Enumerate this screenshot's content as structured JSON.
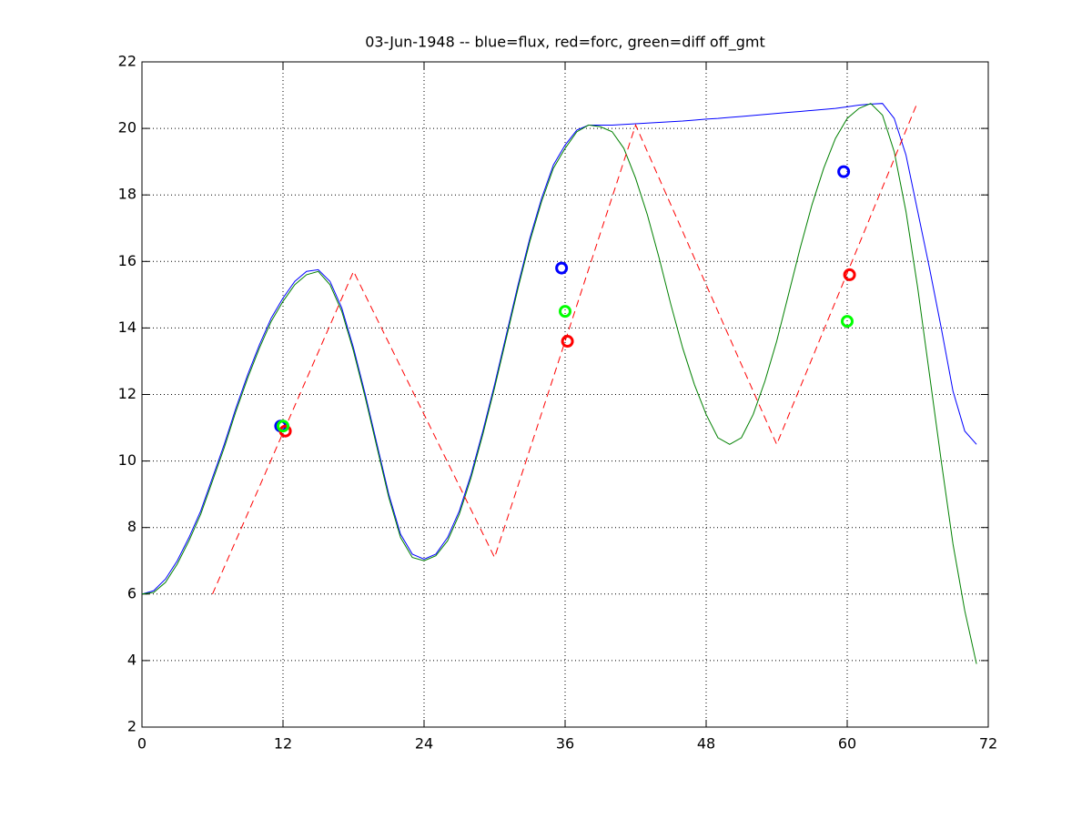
{
  "chart_data": {
    "type": "line",
    "title": "03-Jun-1948 -- blue=flux, red=forc, green=diff off_gmt",
    "xlim": [
      0,
      72
    ],
    "xticks": [
      0,
      12,
      24,
      36,
      48,
      60,
      72
    ],
    "ylim": [
      2,
      22
    ],
    "yticks": [
      2,
      4,
      6,
      8,
      10,
      12,
      14,
      16,
      18,
      20,
      22
    ],
    "grid": true,
    "series": [
      {
        "color": "#0000ff",
        "style": "solid",
        "x": [
          0,
          1,
          2,
          3,
          4,
          5,
          6,
          7,
          8,
          9,
          10,
          11,
          12,
          13,
          14,
          15,
          16,
          17,
          18,
          19,
          20,
          21,
          22,
          23,
          24,
          25,
          26,
          27,
          28,
          29,
          30,
          31,
          32,
          33,
          34,
          35,
          36,
          37,
          38,
          39,
          40,
          41,
          42,
          43,
          44,
          45,
          46,
          47,
          48,
          49,
          50,
          51,
          52,
          53,
          54,
          55,
          56,
          57,
          58,
          59,
          60,
          61,
          62,
          63,
          64,
          65,
          66,
          67,
          68,
          69,
          70,
          71
        ],
        "values": [
          6.0,
          6.1,
          6.45,
          7.0,
          7.7,
          8.5,
          9.5,
          10.5,
          11.6,
          12.6,
          13.5,
          14.3,
          14.9,
          15.4,
          15.7,
          15.75,
          15.4,
          14.6,
          13.4,
          12.0,
          10.5,
          9.0,
          7.8,
          7.2,
          7.05,
          7.2,
          7.7,
          8.5,
          9.6,
          10.9,
          12.3,
          13.8,
          15.3,
          16.7,
          17.9,
          18.9,
          19.5,
          19.95,
          20.1,
          20.1,
          20.1,
          20.12,
          20.14,
          20.16,
          20.18,
          20.2,
          20.22,
          20.25,
          20.28,
          20.3,
          20.33,
          20.36,
          20.39,
          20.42,
          20.45,
          20.48,
          20.51,
          20.54,
          20.57,
          20.6,
          20.65,
          20.7,
          20.73,
          20.75,
          20.3,
          19.2,
          17.5,
          15.8,
          14.0,
          12.1,
          10.9,
          10.5
        ]
      },
      {
        "color": "#008000",
        "style": "solid",
        "x": [
          0,
          1,
          2,
          3,
          4,
          5,
          6,
          7,
          8,
          9,
          10,
          11,
          12,
          13,
          14,
          15,
          16,
          17,
          18,
          19,
          20,
          21,
          22,
          23,
          24,
          25,
          26,
          27,
          28,
          29,
          30,
          31,
          32,
          33,
          34,
          35,
          36,
          37,
          38,
          39,
          40,
          41,
          42,
          43,
          44,
          45,
          46,
          47,
          48,
          49,
          50,
          51,
          52,
          53,
          54,
          55,
          56,
          57,
          58,
          59,
          60,
          61,
          62,
          63,
          64,
          65,
          66,
          67,
          68,
          69,
          70,
          71
        ],
        "values": [
          6.0,
          6.05,
          6.35,
          6.9,
          7.6,
          8.4,
          9.4,
          10.4,
          11.5,
          12.5,
          13.4,
          14.2,
          14.8,
          15.3,
          15.6,
          15.7,
          15.3,
          14.5,
          13.3,
          11.9,
          10.4,
          8.9,
          7.7,
          7.1,
          7.0,
          7.15,
          7.6,
          8.4,
          9.5,
          10.8,
          12.2,
          13.7,
          15.2,
          16.6,
          17.8,
          18.8,
          19.4,
          19.9,
          20.1,
          20.05,
          19.9,
          19.4,
          18.5,
          17.4,
          16.1,
          14.7,
          13.4,
          12.3,
          11.4,
          10.7,
          10.5,
          10.7,
          11.4,
          12.4,
          13.6,
          15.0,
          16.4,
          17.7,
          18.8,
          19.7,
          20.3,
          20.6,
          20.75,
          20.4,
          19.3,
          17.5,
          15.2,
          12.6,
          10.0,
          7.5,
          5.5,
          3.9
        ]
      },
      {
        "color": "#ff0000",
        "style": "dashed",
        "x": [
          6,
          18,
          30,
          42,
          54,
          66
        ],
        "values": [
          6.0,
          15.7,
          7.1,
          20.1,
          10.5,
          20.8
        ]
      },
      {
        "color": "#0000ff",
        "style": "marker",
        "marker": "circle",
        "x": [
          11.8,
          35.7,
          59.7
        ],
        "values": [
          11.05,
          15.8,
          18.7
        ]
      },
      {
        "color": "#ff0000",
        "style": "marker",
        "marker": "circle",
        "x": [
          12.2,
          36.2,
          60.2
        ],
        "values": [
          10.9,
          13.6,
          15.6
        ]
      },
      {
        "color": "#00ff00",
        "style": "marker",
        "marker": "circle",
        "x": [
          12.0,
          36.0,
          60.0
        ],
        "values": [
          11.05,
          14.5,
          14.2
        ]
      }
    ]
  }
}
